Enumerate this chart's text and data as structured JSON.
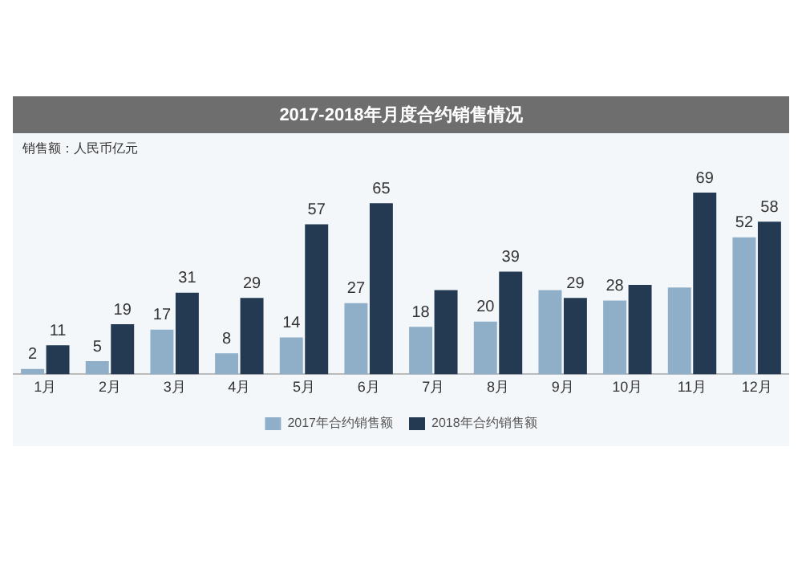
{
  "chart_data": {
    "type": "bar",
    "title": "2017-2018年月度合约销售情况",
    "annotations": [
      "销售额：人民币亿元"
    ],
    "categories": [
      "1月",
      "2月",
      "3月",
      "4月",
      "5月",
      "6月",
      "7月",
      "8月",
      "9月",
      "10月",
      "11月",
      "12月"
    ],
    "series": [
      {
        "name": "2017年合约销售额",
        "color": "#8fafc9",
        "values": [
          2,
          5,
          17,
          8,
          14,
          27,
          18,
          20,
          32,
          28,
          33,
          52
        ],
        "value_labels": [
          "2",
          "5",
          "17",
          "8",
          "14",
          "27",
          "18",
          "20",
          null,
          "28",
          null,
          "52"
        ]
      },
      {
        "name": "2018年合约销售额",
        "color": "#233a52",
        "values": [
          11,
          19,
          31,
          29,
          57,
          65,
          32,
          39,
          29,
          34,
          69,
          58
        ],
        "value_labels": [
          "11",
          "19",
          "31",
          "29",
          "57",
          "65",
          null,
          "39",
          "29",
          null,
          "69",
          "58"
        ]
      }
    ],
    "data_labels": false,
    "legend": "bottom",
    "grid": false
  }
}
